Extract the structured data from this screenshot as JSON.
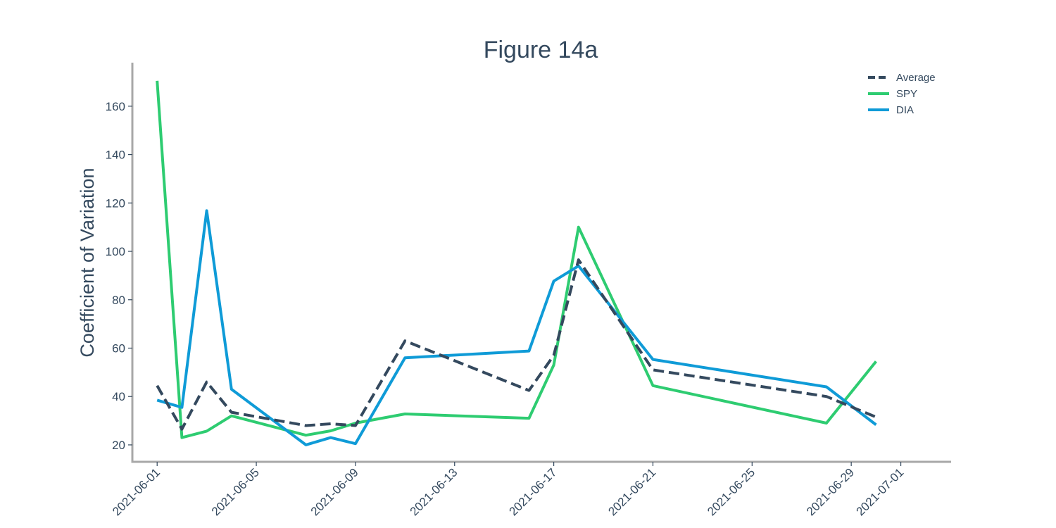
{
  "chart_data": {
    "type": "line",
    "title": "Figure 14a",
    "ylabel": "Coefficient of Variation",
    "xlabel": "",
    "xlim": [
      "2021-05-31",
      "2021-07-03"
    ],
    "ylim": [
      13,
      178
    ],
    "x_ticks": [
      "2021-06-01",
      "2021-06-05",
      "2021-06-09",
      "2021-06-13",
      "2021-06-17",
      "2021-06-21",
      "2021-06-25",
      "2021-06-29",
      "2021-07-01"
    ],
    "y_ticks": [
      20,
      40,
      60,
      80,
      100,
      120,
      140,
      160
    ],
    "grid": false,
    "legend_position": "top-right",
    "series": [
      {
        "name": "Average",
        "color": "#34495e",
        "dash": true,
        "x": [
          "2021-06-01",
          "2021-06-02",
          "2021-06-03",
          "2021-06-04",
          "2021-06-07",
          "2021-06-08",
          "2021-06-09",
          "2021-06-11",
          "2021-06-16",
          "2021-06-17",
          "2021-06-18",
          "2021-06-21",
          "2021-06-28",
          "2021-06-30"
        ],
        "values": [
          44.5,
          26.5,
          46,
          33.5,
          28,
          28.7,
          28,
          63,
          42.5,
          57,
          96.5,
          51,
          40,
          31.5
        ]
      },
      {
        "name": "SPY",
        "color": "#2ecc71",
        "dash": false,
        "x": [
          "2021-06-01",
          "2021-06-02",
          "2021-06-03",
          "2021-06-04",
          "2021-06-07",
          "2021-06-08",
          "2021-06-09",
          "2021-06-11",
          "2021-06-16",
          "2021-06-17",
          "2021-06-18",
          "2021-06-21",
          "2021-06-28",
          "2021-06-30"
        ],
        "values": [
          170.5,
          23,
          25.7,
          32,
          24,
          25.8,
          29,
          32.8,
          31,
          53,
          110,
          44.5,
          29,
          54.5
        ]
      },
      {
        "name": "DIA",
        "color": "#0f9bd7",
        "dash": false,
        "x": [
          "2021-06-01",
          "2021-06-02",
          "2021-06-03",
          "2021-06-04",
          "2021-06-07",
          "2021-06-08",
          "2021-06-09",
          "2021-06-11",
          "2021-06-16",
          "2021-06-17",
          "2021-06-18",
          "2021-06-21",
          "2021-06-28",
          "2021-06-30"
        ],
        "values": [
          38.5,
          35.5,
          116.8,
          43,
          20,
          23,
          20.5,
          56,
          58.8,
          87.7,
          94,
          55.3,
          44,
          28.3
        ]
      }
    ]
  }
}
